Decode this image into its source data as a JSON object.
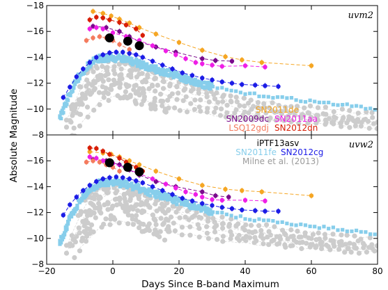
{
  "chart_data": [
    {
      "type": "scatter",
      "panel_label": "uvm2",
      "xlim": [
        -20,
        80
      ],
      "ylim": [
        -8,
        -18
      ],
      "xticks": [],
      "yticks": [
        -8,
        -10,
        -12,
        -14,
        -16,
        -18
      ],
      "ytick_labels": [
        "−8",
        "−10",
        "−12",
        "−14",
        "−16",
        "−18"
      ],
      "legend": [
        {
          "label": "SN2011de",
          "color": "#f5a623"
        },
        {
          "label": "SN2009dc",
          "color": "#7a0a8c"
        },
        {
          "label": "SN2011aa",
          "color": "#ee1ee6"
        },
        {
          "label": "LSQ12gdj",
          "color": "#f47b5e"
        },
        {
          "label": "SN2012dn",
          "color": "#d81e05"
        }
      ],
      "series": [
        {
          "name": "SN2011de",
          "color": "#f5a623",
          "dashed": true,
          "x": [
            -6,
            -3,
            -0.5,
            2,
            5,
            8,
            13,
            20,
            27,
            34,
            39,
            45,
            60
          ],
          "y": [
            -17.55,
            -17.4,
            -17.2,
            -16.95,
            -16.65,
            -16.3,
            -15.8,
            -15.15,
            -14.55,
            -14.05,
            -13.8,
            -13.6,
            -13.35
          ]
        },
        {
          "name": "SN2012dn",
          "color": "#d81e05",
          "dashed": true,
          "x": [
            -7,
            -5,
            -3,
            -1,
            2,
            4,
            7,
            9
          ],
          "y": [
            -16.9,
            -17.1,
            -17.05,
            -16.9,
            -16.7,
            -16.5,
            -16.2,
            -15.7
          ]
        },
        {
          "name": "SN2009dc",
          "color": "#7a0a8c",
          "dashed": true,
          "x": [
            -6,
            -2,
            2,
            5,
            8,
            13,
            19,
            27,
            31,
            36
          ],
          "y": [
            -16.4,
            -16.3,
            -16.0,
            -15.6,
            -15.2,
            -14.8,
            -14.4,
            -13.9,
            -13.75,
            -13.7
          ]
        },
        {
          "name": "SN2011aa",
          "color": "#ee1ee6",
          "dashed": true,
          "x": [
            -7,
            -5,
            -3,
            0,
            4,
            8,
            12,
            16,
            19,
            22,
            25,
            27,
            30,
            33,
            40,
            46
          ],
          "y": [
            -16.2,
            -16.3,
            -16.2,
            -15.9,
            -15.6,
            -15.3,
            -14.9,
            -14.5,
            -14.2,
            -13.9,
            -13.6,
            -13.5,
            -13.4,
            -13.3,
            -13.35,
            -13.25
          ]
        },
        {
          "name": "LSQ12gdj",
          "color": "#f47b5e",
          "dashed": true,
          "x": [
            -8,
            -6,
            -4,
            -2,
            0,
            2,
            5
          ],
          "y": [
            -15.3,
            -15.5,
            -15.6,
            -15.5,
            -15.3,
            -15.0,
            -14.6
          ]
        },
        {
          "name": "SN2012cg",
          "color": "#1c1ce6",
          "dashed": true,
          "x": [
            -15,
            -13,
            -11,
            -9,
            -7,
            -5,
            -3,
            -1,
            1,
            3,
            5,
            7,
            9,
            12,
            15,
            18,
            21,
            24,
            27,
            30,
            33,
            36,
            39,
            43,
            46,
            50
          ],
          "y": [
            -10.9,
            -11.7,
            -12.5,
            -13.1,
            -13.6,
            -14.0,
            -14.2,
            -14.35,
            -14.4,
            -14.4,
            -14.3,
            -14.2,
            -14.0,
            -13.7,
            -13.4,
            -13.1,
            -12.8,
            -12.6,
            -12.4,
            -12.25,
            -12.1,
            -12.0,
            -11.9,
            -11.85,
            -11.8,
            -11.75
          ]
        },
        {
          "name": "iPTF13asv",
          "color": "#000000",
          "dashed": false,
          "big": true,
          "x": [
            -1,
            4.5,
            8
          ],
          "y": [
            -15.5,
            -15.25,
            -14.9
          ]
        }
      ]
    },
    {
      "type": "scatter",
      "panel_label": "uvw2",
      "xlim": [
        -20,
        80
      ],
      "ylim": [
        -8,
        -18
      ],
      "xticks": [
        -20,
        0,
        20,
        40,
        60,
        80
      ],
      "xtick_labels": [
        "−20",
        "0",
        "20",
        "40",
        "60",
        "80"
      ],
      "yticks": [
        -8,
        -10,
        -12,
        -14,
        -16
      ],
      "ytick_labels": [
        "−8",
        "−10",
        "−12",
        "−14",
        "−16"
      ],
      "xlabel": "Days Since B-band Maximum",
      "legend": [
        {
          "label": "iPTF13asv",
          "color": "#000000"
        },
        {
          "label": "SN2011fe",
          "color": "#87ceeb"
        },
        {
          "label": "SN2012cg",
          "color": "#1c1ce6"
        },
        {
          "label": "Milne et al. (2013)",
          "color": "#9a9a9a"
        }
      ],
      "series": [
        {
          "name": "SN2011de",
          "color": "#f5a623",
          "dashed": true,
          "x": [
            -7,
            -3,
            -0.5,
            2,
            5,
            8,
            13,
            20,
            27,
            34,
            39,
            45,
            60
          ],
          "y": [
            -16.7,
            -16.6,
            -16.5,
            -16.3,
            -16.0,
            -15.7,
            -15.2,
            -14.6,
            -14.1,
            -13.8,
            -13.7,
            -13.6,
            -13.3
          ]
        },
        {
          "name": "SN2012dn",
          "color": "#d81e05",
          "dashed": true,
          "x": [
            -7,
            -5,
            -3,
            -1,
            2,
            4,
            7,
            9
          ],
          "y": [
            -17.0,
            -16.95,
            -16.75,
            -16.5,
            -16.2,
            -15.9,
            -15.5,
            -15.2
          ]
        },
        {
          "name": "SN2009dc",
          "color": "#7a0a8c",
          "dashed": true,
          "x": [
            -6,
            -2,
            2,
            5,
            8,
            13,
            19,
            27,
            31,
            35
          ],
          "y": [
            -16.1,
            -16.0,
            -15.7,
            -15.3,
            -14.9,
            -14.4,
            -14.0,
            -13.6,
            -13.3,
            -13.2
          ]
        },
        {
          "name": "SN2011aa",
          "color": "#ee1ee6",
          "dashed": true,
          "x": [
            -7,
            -5,
            -3,
            0,
            4,
            8,
            12,
            16,
            19,
            22,
            25,
            27,
            30,
            33,
            40,
            46
          ],
          "y": [
            -16.3,
            -16.2,
            -16.0,
            -15.8,
            -15.4,
            -15.0,
            -14.6,
            -14.2,
            -13.9,
            -13.6,
            -13.4,
            -13.2,
            -13.0,
            -12.95,
            -12.95,
            -12.9
          ]
        },
        {
          "name": "LSQ12gdj",
          "color": "#f47b5e",
          "dashed": true,
          "x": [
            -8,
            -6,
            -4,
            -2,
            0,
            2
          ],
          "y": [
            -15.9,
            -16.0,
            -15.9,
            -15.7,
            -15.5,
            -15.2
          ]
        },
        {
          "name": "SN2012cg",
          "color": "#1c1ce6",
          "dashed": true,
          "x": [
            -15,
            -13,
            -11,
            -9,
            -7,
            -5,
            -3,
            -1,
            1,
            3,
            5,
            7,
            9,
            12,
            15,
            18,
            21,
            24,
            27,
            30,
            33,
            36,
            39,
            43,
            46,
            50
          ],
          "y": [
            -11.8,
            -12.6,
            -13.2,
            -13.7,
            -14.1,
            -14.4,
            -14.6,
            -14.7,
            -14.75,
            -14.7,
            -14.6,
            -14.45,
            -14.3,
            -14.0,
            -13.7,
            -13.4,
            -13.1,
            -12.9,
            -12.7,
            -12.55,
            -12.4,
            -12.3,
            -12.2,
            -12.15,
            -12.1,
            -12.1
          ]
        },
        {
          "name": "iPTF13asv",
          "color": "#000000",
          "dashed": false,
          "big": true,
          "x": [
            -1,
            4.5,
            8
          ],
          "y": [
            -15.85,
            -15.5,
            -15.15
          ]
        }
      ]
    }
  ],
  "shared_ylabel": "Absolute Magnitude",
  "colors": {
    "sn2011fe": "#87ceeb",
    "milne": "#cccccc"
  }
}
